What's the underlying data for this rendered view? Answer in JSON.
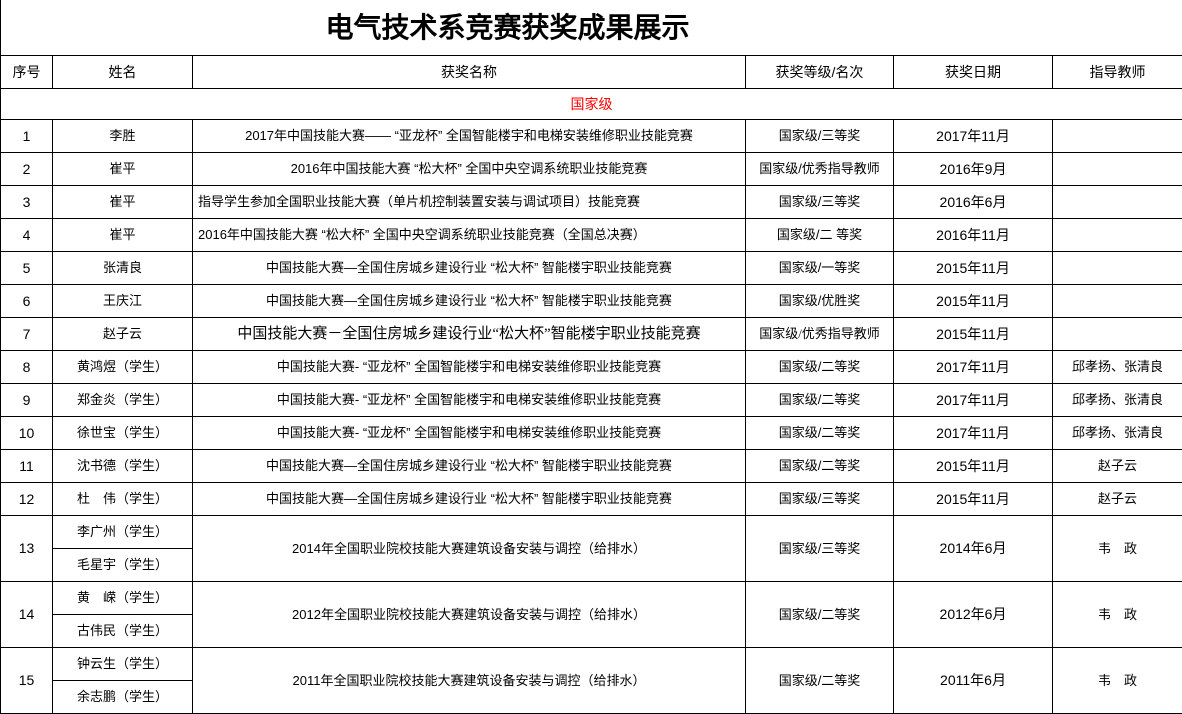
{
  "title": "电气技术系竞赛获奖成果展示",
  "section": {
    "label": "国家级",
    "color": "#ff0000"
  },
  "colors": {
    "border": "#000000",
    "background": "#ffffff",
    "text": "#000000",
    "section_text": "#ff0000"
  },
  "columns": [
    "序号",
    "姓名",
    "获奖名称",
    "获奖等级/名次",
    "获奖日期",
    "指导教师"
  ],
  "rows": [
    {
      "no": "1",
      "names": [
        "李胜"
      ],
      "award": "2017年中国技能大赛—— “亚龙杯” 全国智能楼宇和电梯安装维修职业技能竞赛",
      "grade": "国家级/三等奖",
      "date": "2017年11月",
      "teacher": ""
    },
    {
      "no": "2",
      "names": [
        "崔平"
      ],
      "award": "2016年中国技能大赛 “松大杯” 全国中央空调系统职业技能竞赛",
      "grade": "国家级/优秀指导教师",
      "date": "2016年9月",
      "teacher": ""
    },
    {
      "no": "3",
      "names": [
        "崔平"
      ],
      "award": "指导学生参加全国职业技能大赛（单片机控制装置安装与调试项目）技能竞赛",
      "grade": "国家级/三等奖",
      "date": "2016年6月",
      "teacher": ""
    },
    {
      "no": "4",
      "names": [
        "崔平"
      ],
      "award": "2016年中国技能大赛 “松大杯” 全国中央空调系统职业技能竞赛（全国总决赛）",
      "grade": "国家级/二 等奖",
      "date": "2016年11月",
      "teacher": ""
    },
    {
      "no": "5",
      "names": [
        "张清良"
      ],
      "award": "中国技能大赛—全国住房城乡建设行业 “松大杯” 智能楼宇职业技能竞赛",
      "grade": "国家级/一等奖",
      "date": "2015年11月",
      "teacher": ""
    },
    {
      "no": "6",
      "names": [
        "王庆江"
      ],
      "award": "中国技能大赛—全国住房城乡建设行业 “松大杯” 智能楼宇职业技能竞赛",
      "grade": "国家级/优胜奖",
      "date": "2015年11月",
      "teacher": ""
    },
    {
      "no": "7",
      "names": [
        "赵子云"
      ],
      "award": "中国技能大赛－全国住房城乡建设行业“松大杯”智能楼宇职业技能竞赛",
      "grade": "国家级/优秀指导教师",
      "date": "2015年11月",
      "teacher": ""
    },
    {
      "no": "8",
      "names": [
        "黄鸿煜（学生）"
      ],
      "award": "中国技能大赛- “亚龙杯” 全国智能楼宇和电梯安装维修职业技能竞赛",
      "grade": "国家级/二等奖",
      "date": "2017年11月",
      "teacher": "邱孝扬、张清良"
    },
    {
      "no": "9",
      "names": [
        "郑金炎（学生）"
      ],
      "award": "中国技能大赛- “亚龙杯” 全国智能楼宇和电梯安装维修职业技能竞赛",
      "grade": "国家级/二等奖",
      "date": "2017年11月",
      "teacher": "邱孝扬、张清良"
    },
    {
      "no": "10",
      "names": [
        "徐世宝（学生）"
      ],
      "award": "中国技能大赛- “亚龙杯” 全国智能楼宇和电梯安装维修职业技能竞赛",
      "grade": "国家级/二等奖",
      "date": "2017年11月",
      "teacher": "邱孝扬、张清良"
    },
    {
      "no": "11",
      "names": [
        "沈书德（学生）"
      ],
      "award": "中国技能大赛—全国住房城乡建设行业 “松大杯” 智能楼宇职业技能竞赛",
      "grade": "国家级/二等奖",
      "date": "2015年11月",
      "teacher": "赵子云"
    },
    {
      "no": "12",
      "names": [
        "杜　伟（学生）"
      ],
      "award": "中国技能大赛—全国住房城乡建设行业 “松大杯” 智能楼宇职业技能竞赛",
      "grade": "国家级/三等奖",
      "date": "2015年11月",
      "teacher": "赵子云"
    },
    {
      "no": "13",
      "names": [
        "李广州（学生）",
        "毛星宇（学生）"
      ],
      "award": "2014年全国职业院校技能大赛建筑设备安装与调控（给排水）",
      "grade": "国家级/三等奖",
      "date": "2014年6月",
      "teacher": "韦　政"
    },
    {
      "no": "14",
      "names": [
        "黄　嵘（学生）",
        "古伟民（学生）"
      ],
      "award": "2012年全国职业院校技能大赛建筑设备安装与调控（给排水）",
      "grade": "国家级/二等奖",
      "date": "2012年6月",
      "teacher": "韦　政"
    },
    {
      "no": "15",
      "names": [
        "钟云生（学生）",
        "余志鹏（学生）"
      ],
      "award": "2011年全国职业院校技能大赛建筑设备安装与调控（给排水）",
      "grade": "国家级/二等奖",
      "date": "2011年6月",
      "teacher": "韦　政"
    }
  ]
}
